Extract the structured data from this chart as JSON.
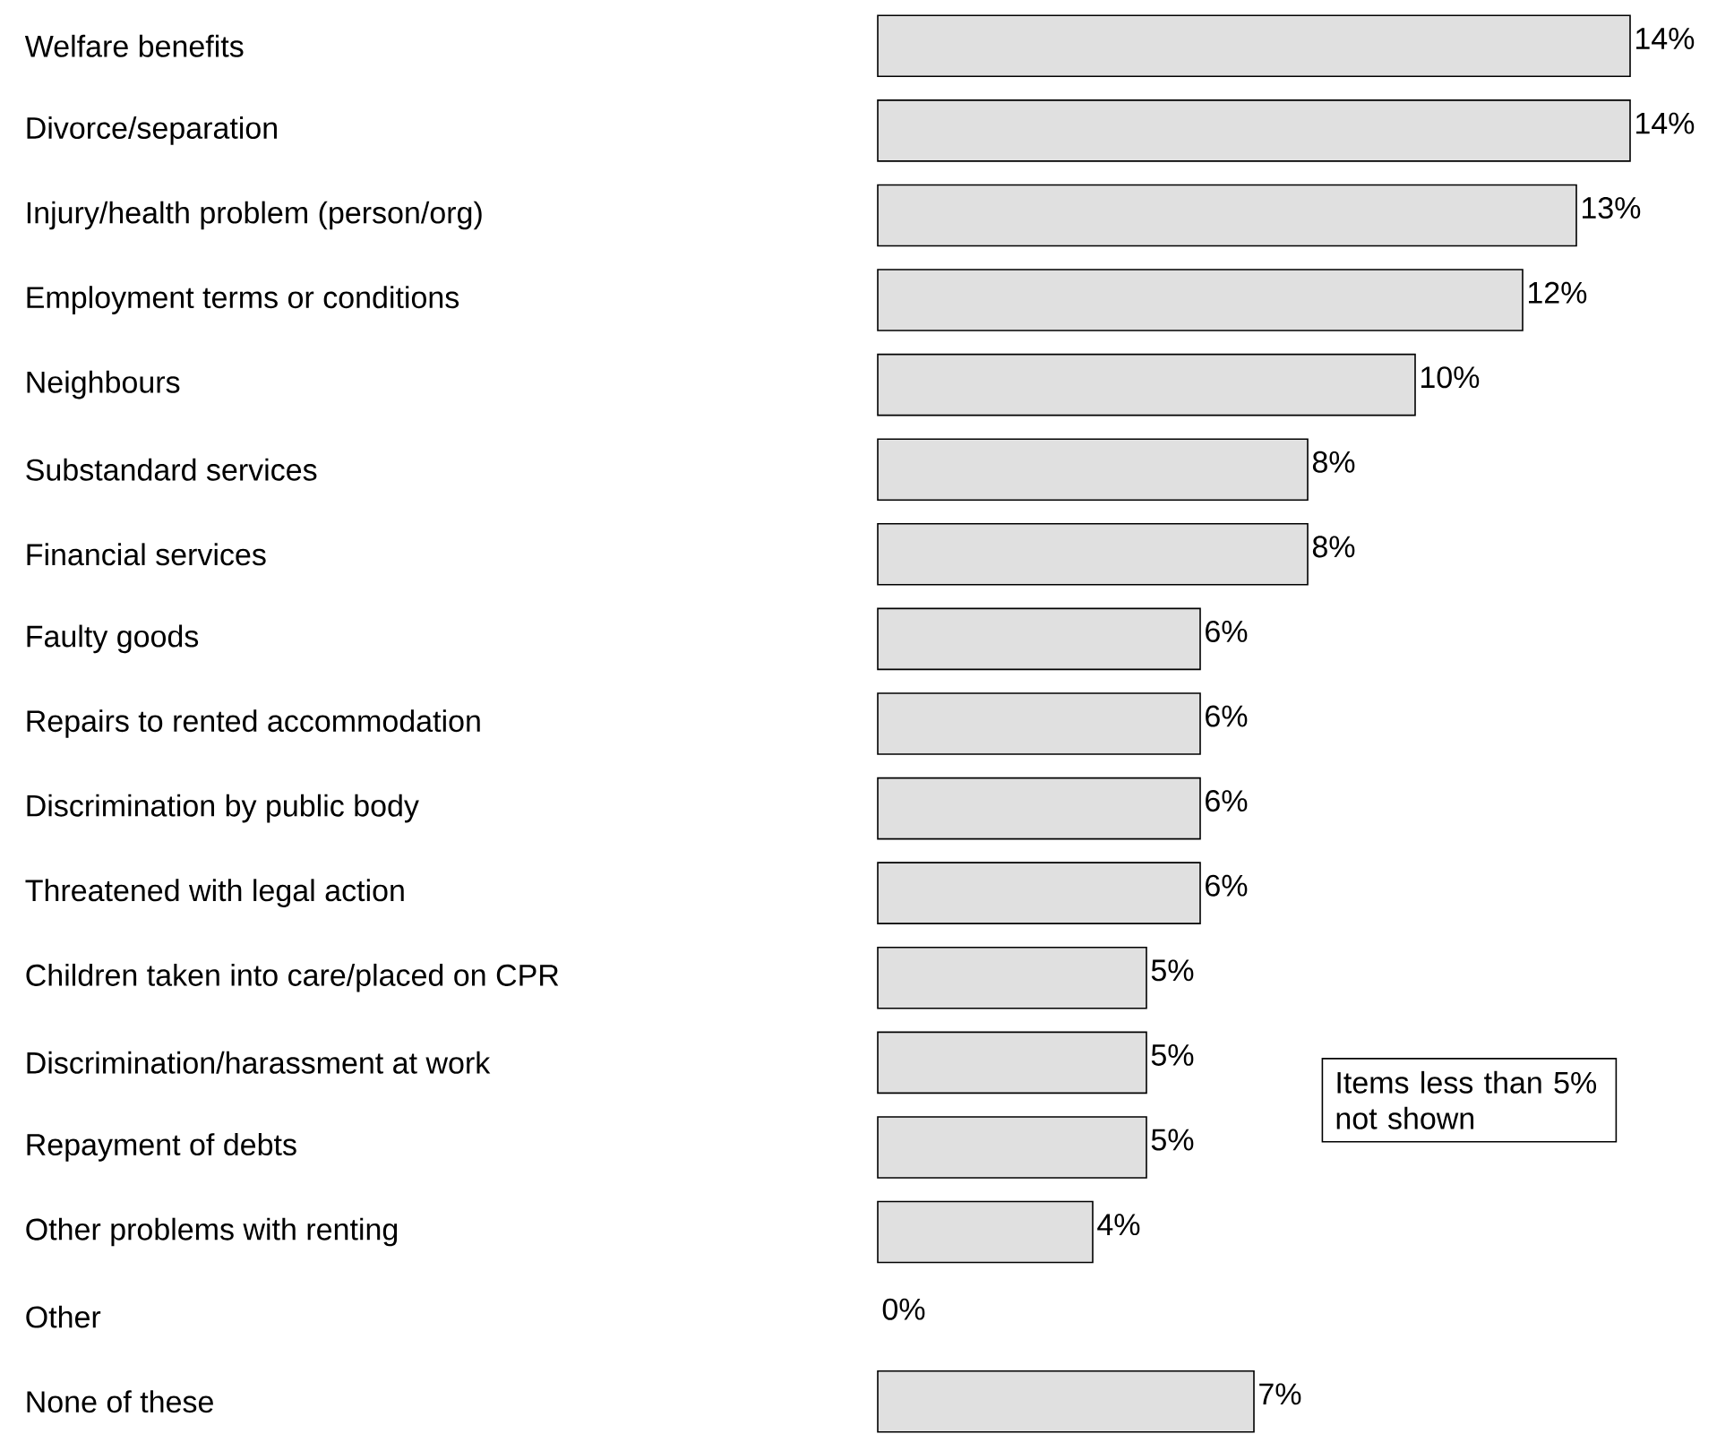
{
  "chart_data": {
    "type": "bar",
    "orientation": "horizontal",
    "color": "#e0e0e0",
    "categories": [
      "Welfare benefits",
      "Divorce/separation",
      "Injury/health problem (person/org)",
      "Employment terms or conditions",
      "Neighbours",
      "Substandard services",
      "Financial services",
      "Faulty goods",
      "Repairs to rented accommodation",
      "Discrimination by public body",
      "Threatened with legal action",
      "Children taken into care/placed on CPR",
      "Discrimination/harassment at work",
      "Repayment of debts",
      "Other problems with renting",
      "Other",
      "None of these"
    ],
    "values": [
      14,
      14,
      13,
      12,
      10,
      8,
      8,
      6,
      6,
      6,
      6,
      5,
      5,
      5,
      4,
      0,
      7
    ],
    "value_labels": [
      "14%",
      "14%",
      "13%",
      "12%",
      "10%",
      "8%",
      "8%",
      "6%",
      "6%",
      "6%",
      "6%",
      "5%",
      "5%",
      "5%",
      "4%",
      "0%",
      "7%"
    ],
    "annotations": [
      "Items less than 5% not shown"
    ]
  }
}
